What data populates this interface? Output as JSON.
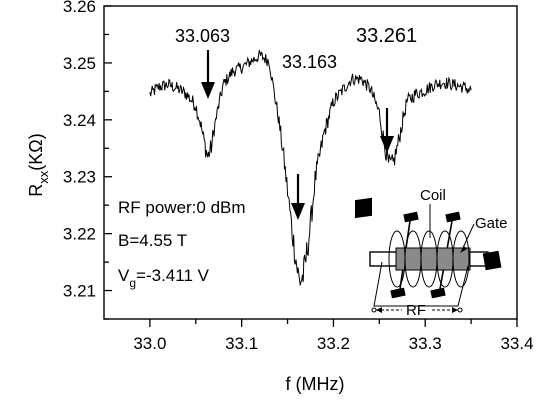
{
  "chart_data": {
    "type": "line",
    "xlabel": "f (MHz)",
    "ylabel_main": "R",
    "ylabel_sub": "xx",
    "ylabel_unit": "(KΩ)",
    "xlim": [
      32.95,
      33.4
    ],
    "ylim": [
      3.205,
      3.26
    ],
    "x_ticks": [
      "33.0",
      "33.1",
      "33.2",
      "33.3",
      "33.4"
    ],
    "x_tick_values": [
      33.0,
      33.1,
      33.2,
      33.3,
      33.4
    ],
    "y_ticks": [
      "3.21",
      "3.22",
      "3.23",
      "3.24",
      "3.25",
      "3.26"
    ],
    "y_tick_values": [
      3.21,
      3.22,
      3.23,
      3.24,
      3.25,
      3.26
    ],
    "grid": false,
    "series": [
      {
        "color": "#000000",
        "x": [
          33.0,
          33.01,
          33.02,
          33.03,
          33.04,
          33.05,
          33.055,
          33.06,
          33.063,
          33.067,
          33.07,
          33.075,
          33.08,
          33.09,
          33.1,
          33.11,
          33.12,
          33.13,
          33.135,
          33.14,
          33.145,
          33.15,
          33.155,
          33.16,
          33.163,
          33.167,
          33.17,
          33.175,
          33.18,
          33.19,
          33.2,
          33.21,
          33.22,
          33.23,
          33.24,
          33.25,
          33.255,
          33.26,
          33.265,
          33.27,
          33.275,
          33.28,
          33.29,
          33.3,
          33.31,
          33.32,
          33.33,
          33.34,
          33.35
        ],
        "y": [
          3.2445,
          3.2458,
          3.2462,
          3.2455,
          3.2445,
          3.2425,
          3.2395,
          3.2355,
          3.2335,
          3.2352,
          3.2385,
          3.2425,
          3.2462,
          3.2485,
          3.2492,
          3.2503,
          3.2513,
          3.2503,
          3.2452,
          3.2405,
          3.2345,
          3.2275,
          3.2205,
          3.2145,
          3.2115,
          3.2125,
          3.2155,
          3.2215,
          3.2295,
          3.2378,
          3.2432,
          3.2452,
          3.2472,
          3.2472,
          3.2455,
          3.2412,
          3.2362,
          3.2322,
          3.2322,
          3.2355,
          3.2395,
          3.2432,
          3.2446,
          3.2452,
          3.2462,
          3.2466,
          3.2462,
          3.2458,
          3.2452
        ]
      }
    ],
    "annotations": {
      "peak_1": "33.063",
      "peak_2": "33.163",
      "peak_3": "33.261",
      "rf_power": "RF power:0 dBm",
      "field": "B=4.55 T",
      "gate_voltage_main": "V",
      "gate_voltage_sub": "g",
      "gate_voltage_value": "=-3.411 V"
    },
    "inset": {
      "coil_label": "Coil",
      "gate_label": "Gate",
      "rf_label": "RF"
    }
  }
}
